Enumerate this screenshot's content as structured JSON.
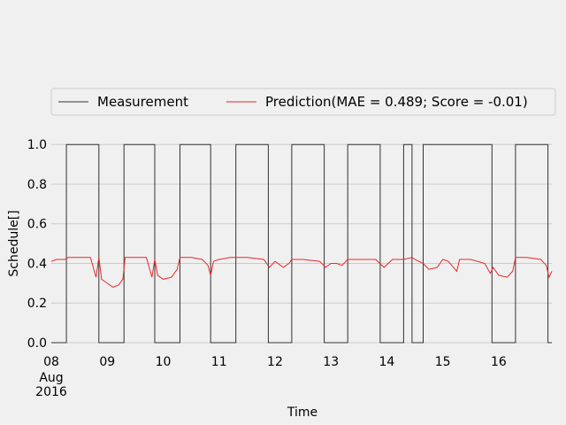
{
  "chart_data": {
    "type": "line",
    "xlabel": "Time",
    "ylabel": "Schedule[]",
    "title": "",
    "ylim": [
      0.0,
      1.05
    ],
    "xlim": [
      8.0,
      16.95
    ],
    "yticks": [
      "0.0",
      "0.2",
      "0.4",
      "0.6",
      "0.8",
      "1.0"
    ],
    "xticks": [
      {
        "value": 8,
        "label": "08",
        "sublabel": [
          "Aug",
          "2016"
        ]
      },
      {
        "value": 9,
        "label": "09"
      },
      {
        "value": 10,
        "label": "10"
      },
      {
        "value": 11,
        "label": "11"
      },
      {
        "value": 12,
        "label": "12"
      },
      {
        "value": 13,
        "label": "13"
      },
      {
        "value": 14,
        "label": "14"
      },
      {
        "value": 15,
        "label": "15"
      },
      {
        "value": 16,
        "label": "16"
      }
    ],
    "grid": true,
    "legend_placement": "top",
    "series": [
      {
        "name": "Measurement",
        "color": "#333333",
        "x": [
          8.0,
          8.27,
          8.27,
          8.85,
          8.85,
          9.3,
          9.3,
          9.85,
          9.85,
          10.3,
          10.3,
          10.85,
          10.85,
          11.3,
          11.3,
          11.88,
          11.88,
          12.3,
          12.3,
          12.88,
          12.88,
          13.3,
          13.3,
          13.88,
          13.88,
          14.3,
          14.3,
          14.45,
          14.45,
          14.65,
          14.65,
          15.88,
          15.88,
          16.3,
          16.3,
          16.88,
          16.88,
          16.95
        ],
        "y": [
          0,
          0,
          1,
          1,
          0,
          0,
          1,
          1,
          0,
          0,
          1,
          1,
          0,
          0,
          1,
          1,
          0,
          0,
          1,
          1,
          0,
          0,
          1,
          1,
          0,
          0,
          1,
          1,
          0,
          0,
          1,
          1,
          0,
          0,
          1,
          1,
          0,
          0
        ]
      },
      {
        "name": "Prediction(MAE = 0.489; Score = -0.01)",
        "color": "#e8282b",
        "x": [
          8.0,
          8.1,
          8.25,
          8.3,
          8.5,
          8.7,
          8.75,
          8.8,
          8.85,
          8.9,
          9.0,
          9.1,
          9.2,
          9.28,
          9.32,
          9.5,
          9.7,
          9.8,
          9.85,
          9.9,
          10.0,
          10.15,
          10.25,
          10.3,
          10.5,
          10.7,
          10.8,
          10.85,
          10.9,
          11.0,
          11.2,
          11.5,
          11.8,
          11.9,
          12.0,
          12.15,
          12.25,
          12.3,
          12.5,
          12.8,
          12.9,
          13.0,
          13.1,
          13.2,
          13.3,
          13.5,
          13.8,
          13.95,
          14.1,
          14.3,
          14.45,
          14.5,
          14.65,
          14.75,
          14.9,
          15.0,
          15.1,
          15.25,
          15.3,
          15.5,
          15.75,
          15.85,
          15.9,
          16.0,
          16.15,
          16.25,
          16.3,
          16.5,
          16.75,
          16.85,
          16.9,
          16.95
        ],
        "y": [
          0.41,
          0.42,
          0.42,
          0.43,
          0.43,
          0.43,
          0.38,
          0.33,
          0.43,
          0.32,
          0.3,
          0.28,
          0.29,
          0.32,
          0.43,
          0.43,
          0.43,
          0.33,
          0.42,
          0.34,
          0.32,
          0.33,
          0.37,
          0.43,
          0.43,
          0.42,
          0.39,
          0.34,
          0.41,
          0.42,
          0.43,
          0.43,
          0.42,
          0.38,
          0.41,
          0.38,
          0.4,
          0.42,
          0.42,
          0.41,
          0.38,
          0.4,
          0.4,
          0.39,
          0.42,
          0.42,
          0.42,
          0.38,
          0.42,
          0.42,
          0.43,
          0.42,
          0.4,
          0.37,
          0.38,
          0.42,
          0.41,
          0.36,
          0.42,
          0.42,
          0.4,
          0.35,
          0.38,
          0.34,
          0.33,
          0.36,
          0.43,
          0.43,
          0.42,
          0.39,
          0.33,
          0.36
        ]
      }
    ]
  }
}
